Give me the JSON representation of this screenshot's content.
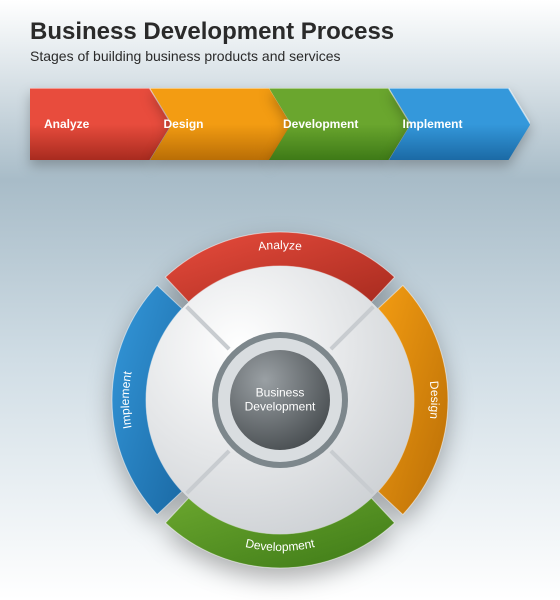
{
  "header": {
    "title": "Business Development Process",
    "subtitle": "Stages of building business products and services",
    "title_fontsize": 24,
    "subtitle_fontsize": 14,
    "text_color": "#2a2a2a"
  },
  "arrows": {
    "type": "arrow-chevron-sequence",
    "height": 72,
    "gap": -4,
    "label_fontsize": 12,
    "label_color": "#ffffff",
    "items": [
      {
        "label": "Analyze",
        "light": "#e84c3d",
        "dark": "#a82b1f"
      },
      {
        "label": "Design",
        "light": "#f39c12",
        "dark": "#b96e06"
      },
      {
        "label": "Development",
        "light": "#6aa62e",
        "dark": "#3e7a17"
      },
      {
        "label": "Implement",
        "light": "#3498db",
        "dark": "#1b6aa5"
      }
    ]
  },
  "wheel": {
    "type": "segmented-ring",
    "diameter": 340,
    "outer_ring_width": 34,
    "inner_disc_radius": 68,
    "center_label_line1": "Business",
    "center_label_line2": "Development",
    "center_fill_light": "#9aa0a4",
    "center_fill_dark": "#3a3f42",
    "inner_ring_color": "#7d878c",
    "mid_ring_light": "#ffffff",
    "mid_ring_dark": "#c8ccd0",
    "divider_color": "#c8ccd0",
    "label_fontsize": 12,
    "label_color": "#ffffff",
    "segments": [
      {
        "label": "Analyze",
        "light": "#e84c3d",
        "dark": "#a82b1f",
        "start": -45,
        "end": 45
      },
      {
        "label": "Design",
        "light": "#f39c12",
        "dark": "#b96e06",
        "start": 45,
        "end": 135
      },
      {
        "label": "Development",
        "light": "#6aa62e",
        "dark": "#3e7a17",
        "start": 135,
        "end": 225
      },
      {
        "label": "Implement",
        "light": "#3498db",
        "dark": "#1b6aa5",
        "start": 225,
        "end": 315
      }
    ]
  },
  "background": {
    "gradient_stops": [
      "#ffffff",
      "#a8bcc8",
      "#d0dde5",
      "#ffffff"
    ]
  }
}
